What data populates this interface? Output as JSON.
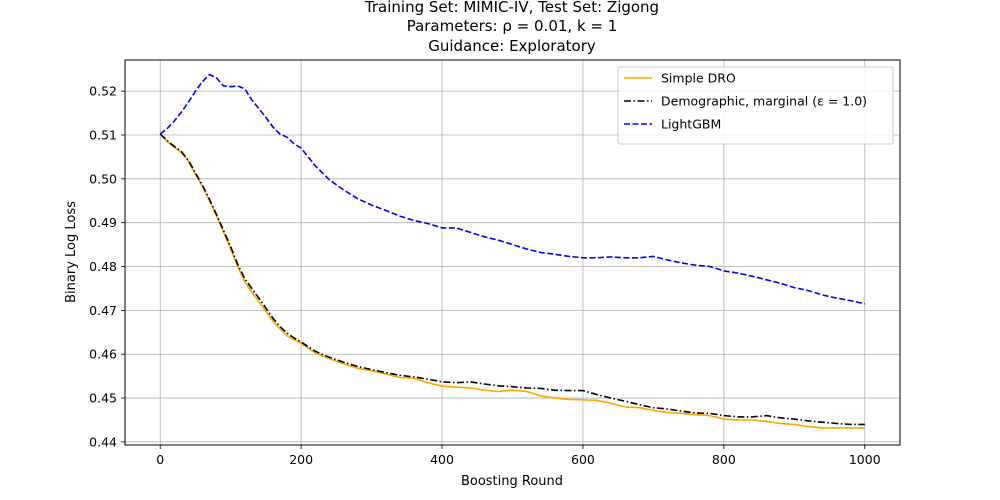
{
  "chart_data": {
    "type": "line",
    "title_lines": [
      "Training Set: MIMIC-IV, Test Set: Zigong",
      "Parameters: ρ = 0.01, k = 1",
      "Guidance: Exploratory"
    ],
    "xlabel": "Boosting Round",
    "ylabel": "Binary Log Loss",
    "xlim": [
      -50,
      1050
    ],
    "ylim": [
      0.4393,
      0.5271
    ],
    "xticks": [
      0,
      200,
      400,
      600,
      800,
      1000
    ],
    "xtick_labels": [
      "0",
      "200",
      "400",
      "600",
      "800",
      "1000"
    ],
    "yticks": [
      0.44,
      0.45,
      0.46,
      0.47,
      0.48,
      0.49,
      0.5,
      0.51,
      0.52
    ],
    "ytick_labels": [
      "0.44",
      "0.45",
      "0.46",
      "0.47",
      "0.48",
      "0.49",
      "0.50",
      "0.51",
      "0.52"
    ],
    "grid": true,
    "legend_position": "top-right",
    "series": [
      {
        "name": "Simple DRO",
        "color": "#ffa500",
        "dash": "solid",
        "x": [
          0,
          10,
          20,
          30,
          40,
          50,
          60,
          70,
          80,
          90,
          100,
          110,
          120,
          130,
          140,
          150,
          160,
          170,
          180,
          190,
          200,
          220,
          240,
          260,
          280,
          300,
          320,
          340,
          360,
          380,
          400,
          420,
          440,
          460,
          480,
          500,
          520,
          540,
          560,
          580,
          600,
          620,
          640,
          660,
          680,
          700,
          720,
          740,
          760,
          780,
          800,
          820,
          840,
          860,
          880,
          900,
          920,
          940,
          960,
          980,
          1000
        ],
        "y": [
          0.5102,
          0.5085,
          0.5072,
          0.506,
          0.504,
          0.501,
          0.4982,
          0.495,
          0.4915,
          0.4878,
          0.484,
          0.48,
          0.4765,
          0.4742,
          0.472,
          0.4698,
          0.4675,
          0.4658,
          0.4642,
          0.4633,
          0.4625,
          0.4603,
          0.459,
          0.4578,
          0.4568,
          0.4562,
          0.4555,
          0.4547,
          0.4545,
          0.4535,
          0.4527,
          0.4525,
          0.4523,
          0.4518,
          0.4515,
          0.4518,
          0.4515,
          0.4505,
          0.45,
          0.4497,
          0.4496,
          0.4495,
          0.4488,
          0.448,
          0.4478,
          0.4472,
          0.4467,
          0.4465,
          0.4462,
          0.446,
          0.4452,
          0.445,
          0.445,
          0.4447,
          0.4442,
          0.444,
          0.4435,
          0.4432,
          0.4432,
          0.4432,
          0.4432
        ]
      },
      {
        "name": "Demographic, marginal (ε = 1.0)",
        "color": "#000000",
        "dash": "dashdot",
        "x": [
          0,
          10,
          20,
          30,
          40,
          50,
          60,
          70,
          80,
          90,
          100,
          110,
          120,
          130,
          140,
          150,
          160,
          170,
          180,
          190,
          200,
          220,
          240,
          260,
          280,
          300,
          320,
          340,
          360,
          380,
          400,
          420,
          440,
          460,
          480,
          500,
          520,
          540,
          560,
          580,
          600,
          620,
          640,
          660,
          680,
          700,
          720,
          740,
          760,
          780,
          800,
          820,
          840,
          860,
          880,
          900,
          920,
          940,
          960,
          980,
          1000
        ],
        "y": [
          0.5102,
          0.5087,
          0.5074,
          0.5062,
          0.5042,
          0.5013,
          0.4985,
          0.4953,
          0.4918,
          0.4882,
          0.4845,
          0.4805,
          0.4772,
          0.475,
          0.4728,
          0.4705,
          0.4682,
          0.4663,
          0.4648,
          0.4637,
          0.4628,
          0.4607,
          0.4593,
          0.4582,
          0.4572,
          0.4565,
          0.4558,
          0.4552,
          0.4548,
          0.4543,
          0.4537,
          0.4535,
          0.4537,
          0.4532,
          0.4528,
          0.4526,
          0.4523,
          0.4522,
          0.4518,
          0.4517,
          0.4517,
          0.4508,
          0.45,
          0.4493,
          0.4485,
          0.4478,
          0.4475,
          0.447,
          0.4466,
          0.4465,
          0.446,
          0.4457,
          0.4457,
          0.446,
          0.4455,
          0.4452,
          0.4448,
          0.4445,
          0.4442,
          0.444,
          0.444
        ]
      },
      {
        "name": "LightGBM",
        "color": "#0000ff",
        "dash": "dashed",
        "x": [
          0,
          10,
          20,
          30,
          40,
          50,
          60,
          70,
          80,
          90,
          100,
          110,
          120,
          130,
          140,
          150,
          160,
          170,
          180,
          190,
          200,
          220,
          240,
          260,
          280,
          300,
          320,
          340,
          360,
          380,
          400,
          420,
          440,
          460,
          480,
          500,
          520,
          540,
          560,
          580,
          600,
          620,
          640,
          660,
          680,
          700,
          720,
          740,
          760,
          780,
          800,
          820,
          840,
          860,
          880,
          900,
          920,
          940,
          960,
          980,
          1000
        ],
        "y": [
          0.5102,
          0.5115,
          0.5132,
          0.5152,
          0.5175,
          0.52,
          0.5222,
          0.5238,
          0.523,
          0.5212,
          0.521,
          0.5212,
          0.5205,
          0.518,
          0.516,
          0.514,
          0.5118,
          0.5102,
          0.5095,
          0.508,
          0.507,
          0.503,
          0.4998,
          0.4975,
          0.4955,
          0.494,
          0.4928,
          0.4915,
          0.4905,
          0.4898,
          0.4888,
          0.4888,
          0.4878,
          0.4868,
          0.486,
          0.485,
          0.484,
          0.4832,
          0.4828,
          0.4823,
          0.482,
          0.482,
          0.4822,
          0.482,
          0.482,
          0.4823,
          0.4815,
          0.4808,
          0.4803,
          0.48,
          0.479,
          0.4785,
          0.4778,
          0.477,
          0.4762,
          0.4752,
          0.4745,
          0.4735,
          0.4728,
          0.4722,
          0.4715
        ]
      }
    ]
  }
}
